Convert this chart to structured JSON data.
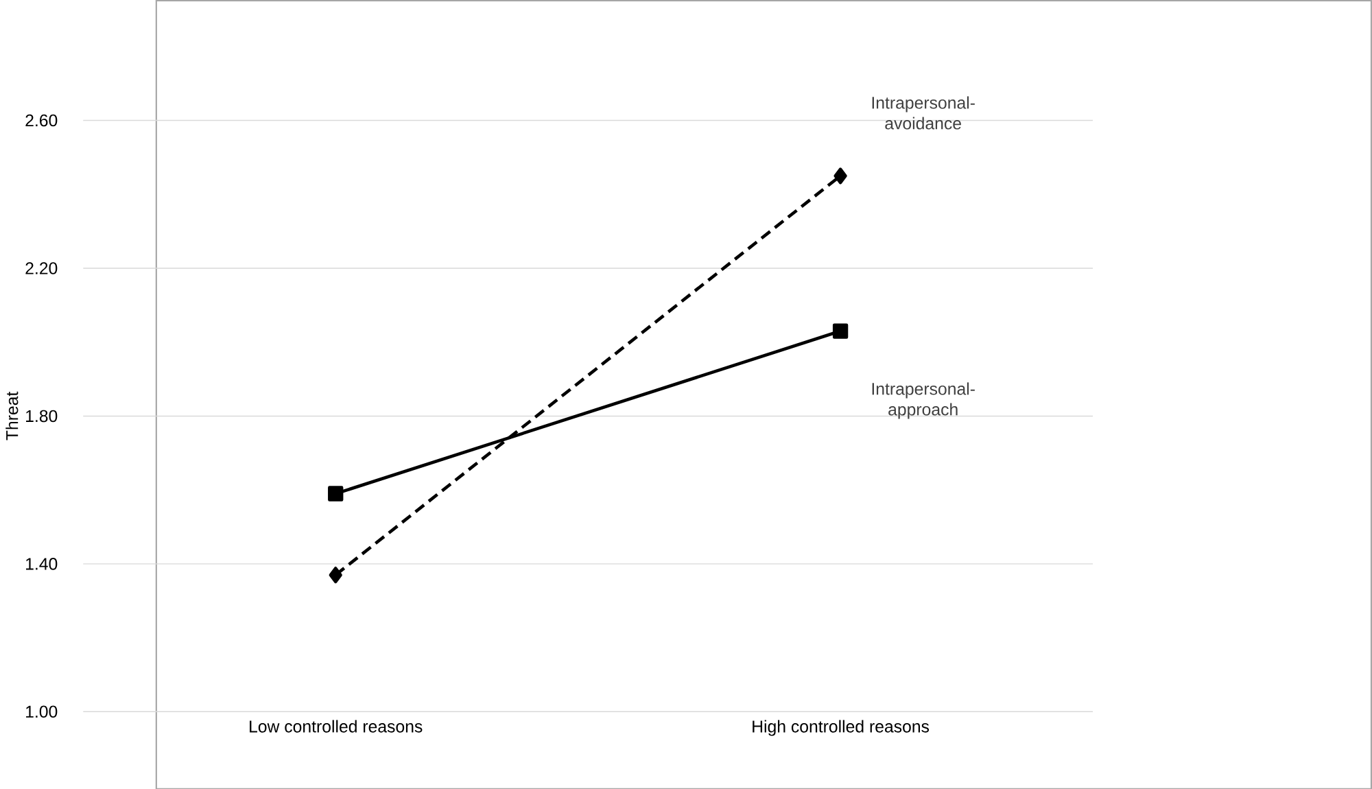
{
  "chart_data": {
    "type": "line",
    "ylabel": "Threat",
    "categories": [
      "Low controlled reasons",
      "High controlled reasons"
    ],
    "series": [
      {
        "name": "Intrapersonal-approach",
        "color": "#000000",
        "marker": "square",
        "line_style": "solid",
        "values": [
          1.59,
          2.03
        ]
      },
      {
        "name": "Intrapersonal-avoidance",
        "color": "#000000",
        "marker": "diamond",
        "line_style": "dashed",
        "values": [
          1.37,
          2.45
        ]
      }
    ],
    "ylim": [
      1.0,
      2.6
    ],
    "yticks": [
      {
        "value": 1.0,
        "label": "1.00"
      },
      {
        "value": 1.4,
        "label": "1.40"
      },
      {
        "value": 1.8,
        "label": "1.80"
      },
      {
        "value": 2.2,
        "label": "2.20"
      },
      {
        "value": 2.6,
        "label": "2.60"
      }
    ],
    "grid": "y"
  }
}
